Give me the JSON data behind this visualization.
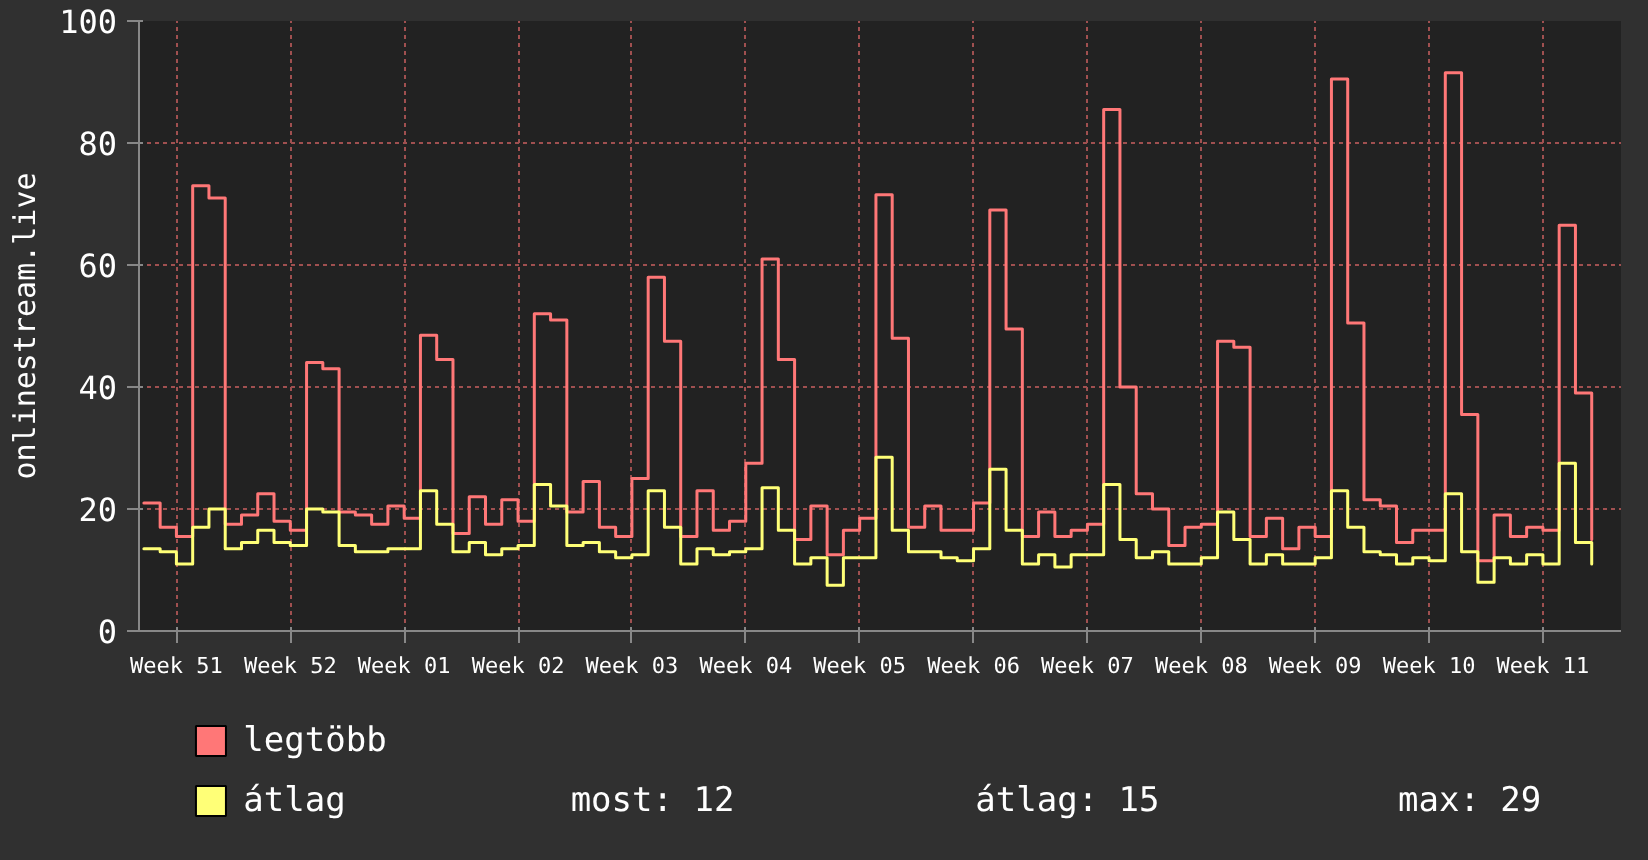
{
  "chart_data": {
    "type": "step",
    "ylabel": "onlinestream.live",
    "categories": [
      null,
      null,
      "Week 51",
      null,
      null,
      null,
      null,
      null,
      null,
      "Week 52",
      null,
      null,
      null,
      null,
      null,
      null,
      "Week 01",
      null,
      null,
      null,
      null,
      null,
      null,
      "Week 02",
      null,
      null,
      null,
      null,
      null,
      null,
      "Week 03",
      null,
      null,
      null,
      null,
      null,
      null,
      "Week 04",
      null,
      null,
      null,
      null,
      null,
      null,
      "Week 05",
      null,
      null,
      null,
      null,
      null,
      null,
      "Week 06",
      null,
      null,
      null,
      null,
      null,
      null,
      "Week 07",
      null,
      null,
      null,
      null,
      null,
      null,
      "Week 08",
      null,
      null,
      null,
      null,
      null,
      null,
      "Week 09",
      null,
      null,
      null,
      null,
      null,
      null,
      "Week 10",
      null,
      null,
      null,
      null,
      null,
      null,
      "Week 11",
      null,
      null,
      null
    ],
    "series": [
      {
        "name": "legtöbb",
        "color": "#ff7777",
        "values": [
          21,
          17,
          15.5,
          73,
          71,
          17.5,
          19,
          22.5,
          18,
          16.5,
          44,
          43,
          19.5,
          19,
          17.5,
          20.5,
          18.5,
          48.5,
          44.5,
          16,
          22,
          17.5,
          21.5,
          18,
          52,
          51,
          19.5,
          24.5,
          17,
          15.5,
          25,
          58,
          47.5,
          15.5,
          23,
          16.5,
          18,
          27.5,
          61,
          44.5,
          15,
          20.5,
          12.5,
          16.5,
          18.5,
          71.5,
          48,
          17,
          20.5,
          16.5,
          16.5,
          21,
          69,
          49.5,
          15.5,
          19.5,
          15.5,
          16.5,
          17.5,
          85.5,
          40,
          22.5,
          20,
          14,
          17,
          17.5,
          47.5,
          46.5,
          15.5,
          18.5,
          13.5,
          17,
          15.5,
          90.5,
          50.5,
          21.5,
          20.5,
          14.5,
          16.5,
          16.5,
          91.5,
          35.5,
          11.5,
          19,
          15.5,
          17,
          16.5,
          66.5,
          39,
          15
        ]
      },
      {
        "name": "átlag",
        "color": "#ffff77",
        "values": [
          13.5,
          13,
          11,
          17,
          20,
          13.5,
          14.5,
          16.5,
          14.5,
          14,
          20,
          19.5,
          14,
          13,
          13,
          13.5,
          13.5,
          23,
          17.5,
          13,
          14.5,
          12.5,
          13.5,
          14,
          24,
          20.5,
          14,
          14.5,
          13,
          12,
          12.5,
          23,
          17,
          11,
          13.5,
          12.5,
          13,
          13.5,
          23.5,
          16.5,
          11,
          12,
          7.5,
          12,
          12,
          28.5,
          16.5,
          13,
          13,
          12,
          11.5,
          13.5,
          26.5,
          16.5,
          11,
          12.5,
          10.5,
          12.5,
          12.5,
          24,
          15,
          12,
          13,
          11,
          11,
          12,
          19.5,
          15,
          11,
          12.5,
          11,
          11,
          12,
          23,
          17,
          13,
          12.5,
          11,
          12,
          11.5,
          22.5,
          13,
          8,
          12,
          11,
          12.5,
          11,
          27.5,
          14.5,
          11
        ]
      }
    ],
    "ylim": [
      0,
      100
    ],
    "yticks": [
      0,
      20,
      40,
      60,
      80,
      100
    ],
    "grid": true,
    "legend": "bottom left",
    "annotations": [
      "most: 12",
      "átlag: 15",
      "max: 29"
    ]
  }
}
